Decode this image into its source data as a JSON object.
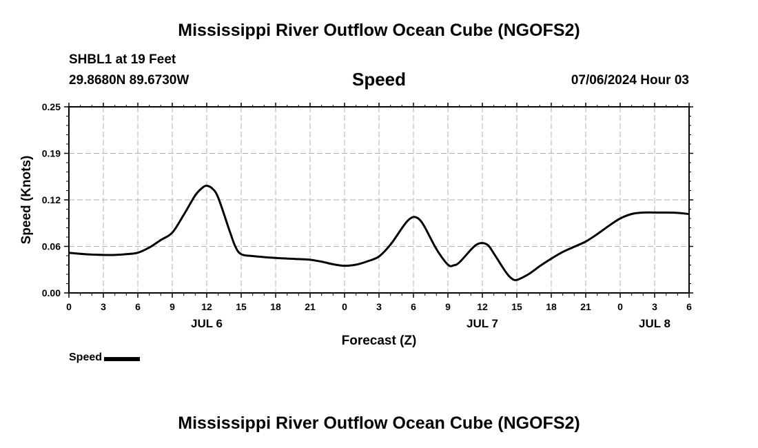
{
  "header": {
    "title": "Mississippi River Outflow Ocean Cube (NGOFS2)",
    "station": "SHBL1 at 19 Feet",
    "coords": "29.8680N  89.6730W",
    "variable": "Speed",
    "timestamp": "07/06/2024 Hour 03"
  },
  "footer": {
    "title": "Mississippi River Outflow Ocean Cube (NGOFS2)"
  },
  "legend": {
    "label": "Speed"
  },
  "chart_data": {
    "type": "line",
    "title": "Speed",
    "xlabel": "Forecast (Z)",
    "ylabel": "Speed (Knots)",
    "xlim": [
      0,
      54
    ],
    "ylim": [
      0,
      0.25
    ],
    "x_tick_values": [
      0,
      3,
      6,
      9,
      12,
      15,
      18,
      21,
      24,
      27,
      30,
      33,
      36,
      39,
      42,
      45,
      48,
      51,
      54
    ],
    "x_tick_labels": [
      "0",
      "3",
      "6",
      "9",
      "12",
      "15",
      "18",
      "21",
      "0",
      "3",
      "6",
      "9",
      "12",
      "15",
      "18",
      "21",
      "0",
      "3",
      "6"
    ],
    "y_tick_values": [
      0.0,
      0.0625,
      0.125,
      0.1875,
      0.25
    ],
    "y_tick_labels": [
      "0.00",
      "0.06",
      "0.12",
      "0.19",
      "0.25"
    ],
    "date_labels": [
      {
        "x": 12,
        "label": "JUL 6"
      },
      {
        "x": 36,
        "label": "JUL 7"
      },
      {
        "x": 51,
        "label": "JUL 8"
      }
    ],
    "grid": true,
    "legend_placement": "bottom-left",
    "line_color": "#000000",
    "series": [
      {
        "name": "Speed",
        "x": [
          0,
          1,
          2,
          3,
          4,
          5,
          6,
          7,
          8,
          9,
          10,
          11,
          11.6,
          12,
          12.5,
          13,
          14,
          14.5,
          15,
          16,
          18,
          20,
          21,
          22,
          23,
          24,
          25,
          26,
          27,
          28,
          29,
          29.5,
          30,
          30.5,
          31,
          32,
          33,
          33.5,
          34,
          35,
          35.5,
          36,
          36.5,
          37,
          38,
          38.5,
          39,
          40,
          41,
          42,
          43,
          44,
          45,
          46,
          47,
          48,
          49,
          50,
          51,
          52,
          53,
          54
        ],
        "y": [
          0.054,
          0.0525,
          0.0515,
          0.051,
          0.051,
          0.052,
          0.054,
          0.061,
          0.071,
          0.081,
          0.105,
          0.131,
          0.141,
          0.144,
          0.14,
          0.128,
          0.083,
          0.062,
          0.052,
          0.0495,
          0.047,
          0.0455,
          0.0445,
          0.042,
          0.0385,
          0.0365,
          0.038,
          0.0425,
          0.049,
          0.065,
          0.087,
          0.097,
          0.102,
          0.099,
          0.088,
          0.059,
          0.038,
          0.037,
          0.041,
          0.058,
          0.065,
          0.067,
          0.064,
          0.053,
          0.029,
          0.02,
          0.0175,
          0.025,
          0.036,
          0.046,
          0.055,
          0.062,
          0.069,
          0.079,
          0.09,
          0.1,
          0.106,
          0.108,
          0.108,
          0.108,
          0.1075,
          0.106
        ]
      }
    ]
  }
}
